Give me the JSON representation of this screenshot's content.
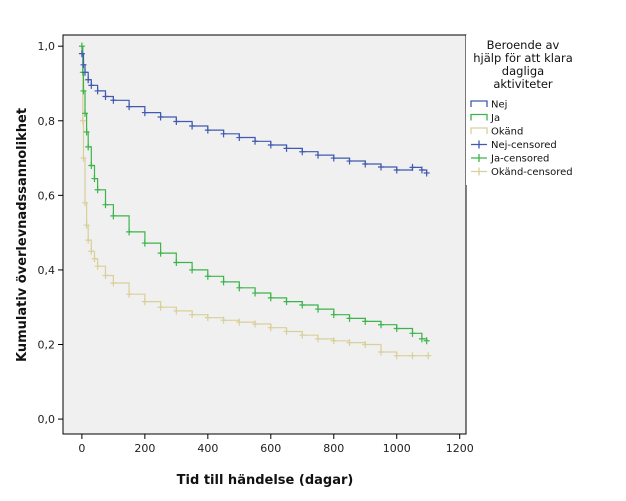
{
  "chart_data": {
    "type": "line",
    "title": "",
    "xlabel": "Tid till händelse (dagar)",
    "ylabel": "Kumulativ överlevnadssannolikhet",
    "xlim": [
      -60,
      1220
    ],
    "ylim": [
      -0.04,
      1.03
    ],
    "xticks": [
      0,
      200,
      400,
      600,
      800,
      1000,
      1200
    ],
    "xtick_labels": [
      "0",
      "200",
      "400",
      "600",
      "800",
      "1000",
      "1200"
    ],
    "yticks": [
      0.0,
      0.2,
      0.4,
      0.6,
      0.8,
      1.0
    ],
    "ytick_labels": [
      "0,0",
      "0,2",
      "0,4",
      "0,6",
      "0,8",
      "1,0"
    ],
    "grid": false,
    "legend_position": "right",
    "legend": {
      "title_lines": [
        "Beroende av",
        "hjälp för att klara",
        "dagliga",
        "aktiviteter"
      ],
      "entries": [
        {
          "label": "Nej",
          "kind": "line",
          "color": "#3f5ab0"
        },
        {
          "label": "Ja",
          "kind": "line",
          "color": "#3cb44b"
        },
        {
          "label": "Okänd",
          "kind": "line",
          "color": "#d9cf9a"
        },
        {
          "label": "Nej-censored",
          "kind": "censor",
          "color": "#3f5ab0"
        },
        {
          "label": "Ja-censored",
          "kind": "censor",
          "color": "#3cb44b"
        },
        {
          "label": "Okänd-censored",
          "kind": "censor",
          "color": "#d9cf9a"
        }
      ]
    },
    "series": [
      {
        "name": "Nej",
        "color": "#3f5ab0",
        "x": [
          0,
          5,
          10,
          20,
          30,
          50,
          75,
          100,
          150,
          200,
          250,
          300,
          350,
          400,
          450,
          500,
          550,
          600,
          650,
          700,
          750,
          800,
          850,
          900,
          950,
          1000,
          1050,
          1080,
          1095
        ],
        "y": [
          0.98,
          0.95,
          0.93,
          0.91,
          0.895,
          0.88,
          0.865,
          0.855,
          0.838,
          0.822,
          0.81,
          0.798,
          0.786,
          0.775,
          0.765,
          0.755,
          0.745,
          0.735,
          0.726,
          0.717,
          0.708,
          0.7,
          0.692,
          0.684,
          0.676,
          0.668,
          0.675,
          0.668,
          0.66
        ]
      },
      {
        "name": "Ja",
        "color": "#3cb44b",
        "x": [
          0,
          3,
          5,
          10,
          15,
          20,
          30,
          40,
          50,
          75,
          100,
          150,
          200,
          250,
          300,
          350,
          400,
          450,
          500,
          550,
          600,
          650,
          700,
          750,
          800,
          850,
          900,
          950,
          1000,
          1050,
          1080,
          1095
        ],
        "y": [
          1.0,
          0.93,
          0.88,
          0.82,
          0.77,
          0.73,
          0.68,
          0.645,
          0.615,
          0.575,
          0.545,
          0.502,
          0.472,
          0.445,
          0.42,
          0.4,
          0.383,
          0.368,
          0.352,
          0.338,
          0.325,
          0.315,
          0.306,
          0.295,
          0.28,
          0.27,
          0.262,
          0.253,
          0.243,
          0.23,
          0.215,
          0.21
        ]
      },
      {
        "name": "Okänd",
        "color": "#d9cf9a",
        "x": [
          0,
          3,
          5,
          10,
          15,
          20,
          30,
          40,
          50,
          75,
          100,
          150,
          200,
          250,
          300,
          350,
          400,
          450,
          500,
          550,
          600,
          650,
          700,
          750,
          800,
          850,
          900,
          950,
          1000,
          1050,
          1100
        ],
        "y": [
          1.0,
          0.8,
          0.7,
          0.58,
          0.52,
          0.48,
          0.45,
          0.43,
          0.41,
          0.385,
          0.365,
          0.335,
          0.315,
          0.3,
          0.29,
          0.28,
          0.272,
          0.265,
          0.26,
          0.255,
          0.245,
          0.235,
          0.225,
          0.215,
          0.21,
          0.205,
          0.2,
          0.18,
          0.17,
          0.17,
          0.17
        ]
      }
    ]
  }
}
